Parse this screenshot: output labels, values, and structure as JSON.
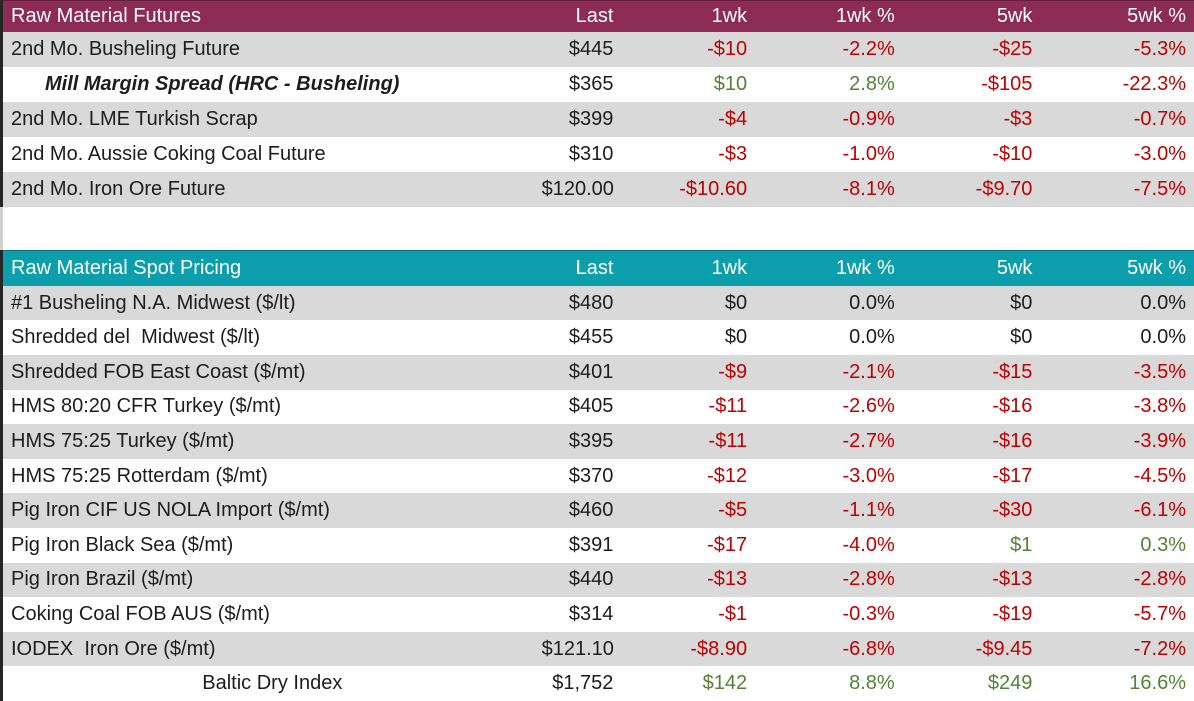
{
  "columns": [
    "Last",
    "1wk",
    "1wk %",
    "5wk",
    "5wk %"
  ],
  "colors": {
    "futures_header_bg": "#8C2B55",
    "spot_header_bg": "#0C9FAB",
    "negative_text": "#C00000",
    "positive_text": "#548235",
    "shaded_row_bg": "#D9D9D9",
    "header_text": "#FFFFFF"
  },
  "tables": [
    {
      "title": "Raw Material Futures",
      "rows": [
        {
          "label": "2nd Mo. Busheling Future",
          "style": "normal",
          "values": [
            {
              "v": "$445",
              "c": "flat"
            },
            {
              "v": "-$10",
              "c": "down"
            },
            {
              "v": "-2.2%",
              "c": "down"
            },
            {
              "v": "-$25",
              "c": "down"
            },
            {
              "v": "-5.3%",
              "c": "down"
            }
          ]
        },
        {
          "label": "Mill Margin Spread (HRC - Busheling)",
          "style": "indent-italic",
          "values": [
            {
              "v": "$365",
              "c": "flat"
            },
            {
              "v": "$10",
              "c": "up"
            },
            {
              "v": "2.8%",
              "c": "up"
            },
            {
              "v": "-$105",
              "c": "down"
            },
            {
              "v": "-22.3%",
              "c": "down"
            }
          ]
        },
        {
          "label": "2nd Mo. LME Turkish Scrap",
          "style": "normal",
          "values": [
            {
              "v": "$399",
              "c": "flat"
            },
            {
              "v": "-$4",
              "c": "down"
            },
            {
              "v": "-0.9%",
              "c": "down"
            },
            {
              "v": "-$3",
              "c": "down"
            },
            {
              "v": "-0.7%",
              "c": "down"
            }
          ]
        },
        {
          "label": "2nd Mo. Aussie Coking Coal Future",
          "style": "normal",
          "values": [
            {
              "v": "$310",
              "c": "flat"
            },
            {
              "v": "-$3",
              "c": "down"
            },
            {
              "v": "-1.0%",
              "c": "down"
            },
            {
              "v": "-$10",
              "c": "down"
            },
            {
              "v": "-3.0%",
              "c": "down"
            }
          ]
        },
        {
          "label": "2nd Mo. Iron Ore Future",
          "style": "normal",
          "values": [
            {
              "v": "$120.00",
              "c": "flat"
            },
            {
              "v": "-$10.60",
              "c": "down"
            },
            {
              "v": "-8.1%",
              "c": "down"
            },
            {
              "v": "-$9.70",
              "c": "down"
            },
            {
              "v": "-7.5%",
              "c": "down"
            }
          ]
        }
      ]
    },
    {
      "title": "Raw Material Spot Pricing",
      "rows": [
        {
          "label": "#1 Busheling N.A. Midwest ($/lt)",
          "style": "normal",
          "values": [
            {
              "v": "$480",
              "c": "flat"
            },
            {
              "v": "$0",
              "c": "flat"
            },
            {
              "v": "0.0%",
              "c": "flat"
            },
            {
              "v": "$0",
              "c": "flat"
            },
            {
              "v": "0.0%",
              "c": "flat"
            }
          ]
        },
        {
          "label": "Shredded del  Midwest ($/lt)",
          "style": "normal",
          "values": [
            {
              "v": "$455",
              "c": "flat"
            },
            {
              "v": "$0",
              "c": "flat"
            },
            {
              "v": "0.0%",
              "c": "flat"
            },
            {
              "v": "$0",
              "c": "flat"
            },
            {
              "v": "0.0%",
              "c": "flat"
            }
          ]
        },
        {
          "label": "Shredded FOB East Coast ($/mt)",
          "style": "normal",
          "values": [
            {
              "v": "$401",
              "c": "flat"
            },
            {
              "v": "-$9",
              "c": "down"
            },
            {
              "v": "-2.1%",
              "c": "down"
            },
            {
              "v": "-$15",
              "c": "down"
            },
            {
              "v": "-3.5%",
              "c": "down"
            }
          ]
        },
        {
          "label": "HMS 80:20 CFR Turkey ($/mt)",
          "style": "normal",
          "values": [
            {
              "v": "$405",
              "c": "flat"
            },
            {
              "v": "-$11",
              "c": "down"
            },
            {
              "v": "-2.6%",
              "c": "down"
            },
            {
              "v": "-$16",
              "c": "down"
            },
            {
              "v": "-3.8%",
              "c": "down"
            }
          ]
        },
        {
          "label": "HMS 75:25 Turkey ($/mt)",
          "style": "normal",
          "values": [
            {
              "v": "$395",
              "c": "flat"
            },
            {
              "v": "-$11",
              "c": "down"
            },
            {
              "v": "-2.7%",
              "c": "down"
            },
            {
              "v": "-$16",
              "c": "down"
            },
            {
              "v": "-3.9%",
              "c": "down"
            }
          ]
        },
        {
          "label": "HMS 75:25 Rotterdam ($/mt)",
          "style": "normal",
          "values": [
            {
              "v": "$370",
              "c": "flat"
            },
            {
              "v": "-$12",
              "c": "down"
            },
            {
              "v": "-3.0%",
              "c": "down"
            },
            {
              "v": "-$17",
              "c": "down"
            },
            {
              "v": "-4.5%",
              "c": "down"
            }
          ]
        },
        {
          "label": "Pig Iron CIF US NOLA Import ($/mt)",
          "style": "normal",
          "values": [
            {
              "v": "$460",
              "c": "flat"
            },
            {
              "v": "-$5",
              "c": "down"
            },
            {
              "v": "-1.1%",
              "c": "down"
            },
            {
              "v": "-$30",
              "c": "down"
            },
            {
              "v": "-6.1%",
              "c": "down"
            }
          ]
        },
        {
          "label": "Pig Iron Black Sea ($/mt)",
          "style": "normal",
          "values": [
            {
              "v": "$391",
              "c": "flat"
            },
            {
              "v": "-$17",
              "c": "down"
            },
            {
              "v": "-4.0%",
              "c": "down"
            },
            {
              "v": "$1",
              "c": "up"
            },
            {
              "v": "0.3%",
              "c": "up"
            }
          ]
        },
        {
          "label": "Pig Iron Brazil ($/mt)",
          "style": "normal",
          "values": [
            {
              "v": "$440",
              "c": "flat"
            },
            {
              "v": "-$13",
              "c": "down"
            },
            {
              "v": "-2.8%",
              "c": "down"
            },
            {
              "v": "-$13",
              "c": "down"
            },
            {
              "v": "-2.8%",
              "c": "down"
            }
          ]
        },
        {
          "label": "Coking Coal FOB AUS ($/mt)",
          "style": "normal",
          "values": [
            {
              "v": "$314",
              "c": "flat"
            },
            {
              "v": "-$1",
              "c": "down"
            },
            {
              "v": "-0.3%",
              "c": "down"
            },
            {
              "v": "-$19",
              "c": "down"
            },
            {
              "v": "-5.7%",
              "c": "down"
            }
          ]
        },
        {
          "label": "IODEX  Iron Ore ($/mt)",
          "style": "normal",
          "values": [
            {
              "v": "$121.10",
              "c": "flat"
            },
            {
              "v": "-$8.90",
              "c": "down"
            },
            {
              "v": "-6.8%",
              "c": "down"
            },
            {
              "v": "-$9.45",
              "c": "down"
            },
            {
              "v": "-7.2%",
              "c": "down"
            }
          ]
        },
        {
          "label": "Baltic Dry Index",
          "style": "center",
          "values": [
            {
              "v": "$1,752",
              "c": "flat"
            },
            {
              "v": "$142",
              "c": "up"
            },
            {
              "v": "8.8%",
              "c": "up"
            },
            {
              "v": "$249",
              "c": "up"
            },
            {
              "v": "16.6%",
              "c": "up"
            }
          ]
        }
      ]
    }
  ]
}
